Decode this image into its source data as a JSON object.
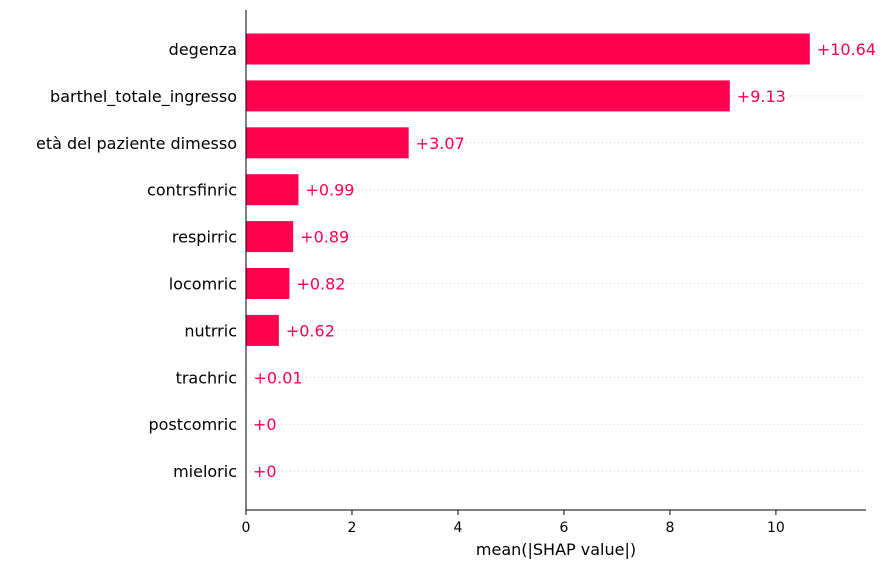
{
  "chart_data": {
    "type": "bar",
    "orientation": "horizontal",
    "categories": [
      "degenza",
      "barthel_totale_ingresso",
      "età del paziente dimesso",
      "contrsfinric",
      "respirric",
      "locomric",
      "nutrric",
      "trachric",
      "postcomric",
      "mieloric"
    ],
    "values": [
      10.64,
      9.13,
      3.07,
      0.99,
      0.89,
      0.82,
      0.62,
      0.01,
      0,
      0
    ],
    "value_labels": [
      "+10.64",
      "+9.13",
      "+3.07",
      "+0.99",
      "+0.89",
      "+0.82",
      "+0.62",
      "+0.01",
      "+0",
      "+0"
    ],
    "xlabel": "mean(|SHAP value|)",
    "xlim": [
      0,
      11.7
    ],
    "xticks": [
      0,
      2,
      4,
      6,
      8,
      10
    ],
    "xtick_labels": [
      "0",
      "2",
      "4",
      "6",
      "8",
      "10"
    ],
    "grid": "dotted horizontal per row",
    "bar_color": "#ff0051",
    "label_color": "#ff0051"
  }
}
